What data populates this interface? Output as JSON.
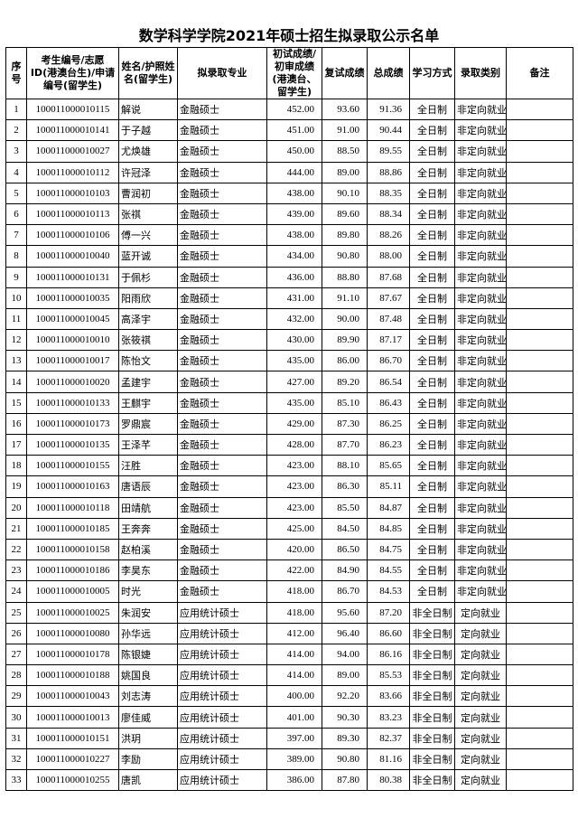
{
  "header": {
    "title": "数学科学学院2021年硕士招生拟录取公示名单"
  },
  "table": {
    "columns": [
      "序号",
      "考生编号/志愿ID(港澳台生)/申请编号(留学生)",
      "姓名/护照姓名(留学生)",
      "拟录取专业",
      "初试成绩/初审成绩(港澳台、留学生)",
      "复试成绩",
      "总成绩",
      "学习方式",
      "录取类别",
      "备注"
    ],
    "rows": [
      [
        "1",
        "100011000010115",
        "解说",
        "金融硕士",
        "452.00",
        "93.60",
        "91.36",
        "全日制",
        "非定向就业"
      ],
      [
        "2",
        "100011000010141",
        "于子越",
        "金融硕士",
        "451.00",
        "91.00",
        "90.44",
        "全日制",
        "非定向就业"
      ],
      [
        "3",
        "100011000010027",
        "尤焕雄",
        "金融硕士",
        "450.00",
        "88.50",
        "89.55",
        "全日制",
        "非定向就业"
      ],
      [
        "4",
        "100011000010112",
        "许冠泽",
        "金融硕士",
        "444.00",
        "89.00",
        "88.86",
        "全日制",
        "非定向就业"
      ],
      [
        "5",
        "100011000010103",
        "曹润初",
        "金融硕士",
        "438.00",
        "90.10",
        "88.35",
        "全日制",
        "非定向就业"
      ],
      [
        "6",
        "100011000010113",
        "张祺",
        "金融硕士",
        "439.00",
        "89.60",
        "88.34",
        "全日制",
        "非定向就业"
      ],
      [
        "7",
        "100011000010106",
        "傅一兴",
        "金融硕士",
        "438.00",
        "89.80",
        "88.26",
        "全日制",
        "非定向就业"
      ],
      [
        "8",
        "100011000010040",
        "蓝开诚",
        "金融硕士",
        "434.00",
        "90.80",
        "88.00",
        "全日制",
        "非定向就业"
      ],
      [
        "9",
        "100011000010131",
        "于佩杉",
        "金融硕士",
        "436.00",
        "88.80",
        "87.68",
        "全日制",
        "非定向就业"
      ],
      [
        "10",
        "100011000010035",
        "阳雨欣",
        "金融硕士",
        "431.00",
        "91.10",
        "87.67",
        "全日制",
        "非定向就业"
      ],
      [
        "11",
        "100011000010045",
        "高泽宇",
        "金融硕士",
        "432.00",
        "90.00",
        "87.48",
        "全日制",
        "非定向就业"
      ],
      [
        "12",
        "100011000010010",
        "张筱祺",
        "金融硕士",
        "430.00",
        "89.90",
        "87.17",
        "全日制",
        "非定向就业"
      ],
      [
        "13",
        "100011000010017",
        "陈怡文",
        "金融硕士",
        "435.00",
        "86.00",
        "86.70",
        "全日制",
        "非定向就业"
      ],
      [
        "14",
        "100011000010020",
        "孟建宇",
        "金融硕士",
        "427.00",
        "89.20",
        "86.54",
        "全日制",
        "非定向就业"
      ],
      [
        "15",
        "100011000010133",
        "王麒宇",
        "金融硕士",
        "435.00",
        "85.10",
        "86.43",
        "全日制",
        "非定向就业"
      ],
      [
        "16",
        "100011000010173",
        "罗鼎宸",
        "金融硕士",
        "429.00",
        "87.30",
        "86.25",
        "全日制",
        "非定向就业"
      ],
      [
        "17",
        "100011000010135",
        "王泽芊",
        "金融硕士",
        "428.00",
        "87.70",
        "86.23",
        "全日制",
        "非定向就业"
      ],
      [
        "18",
        "100011000010155",
        "汪胜",
        "金融硕士",
        "423.00",
        "88.10",
        "85.65",
        "全日制",
        "非定向就业"
      ],
      [
        "19",
        "100011000010163",
        "唐语辰",
        "金融硕士",
        "423.00",
        "86.30",
        "85.11",
        "全日制",
        "非定向就业"
      ],
      [
        "20",
        "100011000010118",
        "田靖航",
        "金融硕士",
        "423.00",
        "85.50",
        "84.87",
        "全日制",
        "非定向就业"
      ],
      [
        "21",
        "100011000010185",
        "王奔奔",
        "金融硕士",
        "425.00",
        "84.50",
        "84.85",
        "全日制",
        "非定向就业"
      ],
      [
        "22",
        "100011000010158",
        "赵柏溪",
        "金融硕士",
        "420.00",
        "86.50",
        "84.75",
        "全日制",
        "非定向就业"
      ],
      [
        "23",
        "100011000010186",
        "李昊东",
        "金融硕士",
        "422.00",
        "84.90",
        "84.55",
        "全日制",
        "非定向就业"
      ],
      [
        "24",
        "100011000010005",
        "时光",
        "金融硕士",
        "418.00",
        "86.70",
        "84.53",
        "全日制",
        "非定向就业"
      ],
      [
        "25",
        "100011000010025",
        "朱润安",
        "应用统计硕士",
        "418.00",
        "95.60",
        "87.20",
        "非全日制",
        "定向就业"
      ],
      [
        "26",
        "100011000010080",
        "孙华远",
        "应用统计硕士",
        "412.00",
        "96.40",
        "86.60",
        "非全日制",
        "定向就业"
      ],
      [
        "27",
        "100011000010178",
        "陈银婕",
        "应用统计硕士",
        "414.00",
        "94.00",
        "86.16",
        "非全日制",
        "定向就业"
      ],
      [
        "28",
        "100011000010188",
        "姚国良",
        "应用统计硕士",
        "414.00",
        "89.00",
        "85.53",
        "非全日制",
        "定向就业"
      ],
      [
        "29",
        "100011000010043",
        "刘志涛",
        "应用统计硕士",
        "400.00",
        "92.20",
        "83.66",
        "非全日制",
        "定向就业"
      ],
      [
        "30",
        "100011000010013",
        "廖佳威",
        "应用统计硕士",
        "401.00",
        "90.30",
        "83.23",
        "非全日制",
        "定向就业"
      ],
      [
        "31",
        "100011000010151",
        "洪玥",
        "应用统计硕士",
        "397.00",
        "89.30",
        "82.37",
        "非全日制",
        "定向就业"
      ],
      [
        "32",
        "100011000010227",
        "李励",
        "应用统计硕士",
        "389.00",
        "90.80",
        "81.16",
        "非全日制",
        "定向就业"
      ],
      [
        "33",
        "100011000010255",
        "唐凯",
        "应用统计硕士",
        "386.00",
        "87.80",
        "80.38",
        "非全日制",
        "定向就业"
      ]
    ]
  }
}
